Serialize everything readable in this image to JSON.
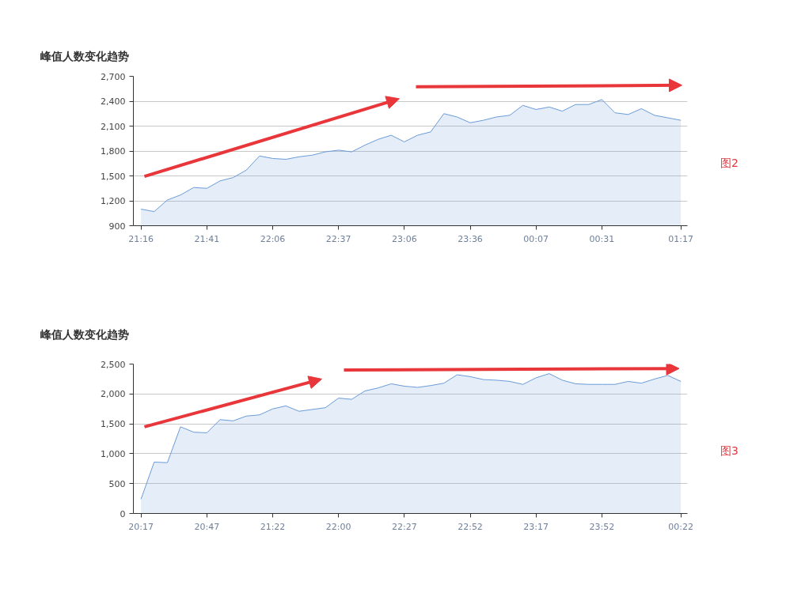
{
  "chart_data": [
    {
      "type": "area",
      "title": "峰值人数变化趋势",
      "categories": [
        "21:16",
        null,
        null,
        null,
        null,
        "21:41",
        null,
        null,
        null,
        null,
        "22:06",
        null,
        null,
        null,
        null,
        "22:37",
        null,
        null,
        null,
        null,
        "23:06",
        null,
        null,
        null,
        null,
        "23:36",
        null,
        null,
        null,
        null,
        "00:07",
        null,
        null,
        null,
        null,
        "00:31",
        null,
        null,
        null,
        null,
        null,
        "01:17"
      ],
      "series": [
        {
          "color": "#6a9bd8",
          "values": [
            1100,
            1070,
            1210,
            1270,
            1360,
            1350,
            1440,
            1480,
            1570,
            1740,
            1710,
            1700,
            1730,
            1750,
            1790,
            1810,
            1790,
            1870,
            1940,
            1990,
            1910,
            1990,
            2030,
            2250,
            2210,
            2140,
            2170,
            2210,
            2230,
            2350,
            2300,
            2330,
            2280,
            2360,
            2360,
            2420,
            2260,
            2240,
            2310,
            2230,
            2200,
            2170
          ]
        }
      ],
      "ylim": [
        900,
        2700
      ],
      "yticks": [
        {
          "value": 900,
          "label": "900"
        },
        {
          "value": 1200,
          "label": "1,200"
        },
        {
          "value": 1500,
          "label": "1,500"
        },
        {
          "value": 1800,
          "label": "1,800"
        },
        {
          "value": 2100,
          "label": "2,100"
        },
        {
          "value": 2400,
          "label": "2,400"
        },
        {
          "value": 2700,
          "label": "2,700"
        }
      ],
      "grid": "y",
      "annotations": [
        "图2"
      ]
    },
    {
      "type": "area",
      "title": "峰值人数变化趋势",
      "categories": [
        "20:17",
        null,
        null,
        null,
        null,
        "20:47",
        null,
        null,
        null,
        null,
        "21:22",
        null,
        null,
        null,
        null,
        "22:00",
        null,
        null,
        null,
        null,
        "22:27",
        null,
        null,
        null,
        null,
        "22:52",
        null,
        null,
        null,
        null,
        "23:17",
        null,
        null,
        null,
        null,
        "23:52",
        null,
        null,
        null,
        null,
        null,
        "00:22"
      ],
      "series": [
        {
          "color": "#6a9bd8",
          "values": [
            240,
            860,
            850,
            1450,
            1360,
            1350,
            1570,
            1550,
            1630,
            1650,
            1750,
            1800,
            1710,
            1740,
            1770,
            1930,
            1910,
            2050,
            2100,
            2170,
            2130,
            2110,
            2140,
            2180,
            2320,
            2290,
            2240,
            2230,
            2210,
            2160,
            2270,
            2340,
            2230,
            2170,
            2160,
            2160,
            2160,
            2210,
            2180,
            2250,
            2310,
            2210
          ]
        }
      ],
      "ylim": [
        0,
        2500
      ],
      "yticks": [
        0,
        500,
        {
          "value": 1000,
          "label": "1,000"
        },
        {
          "value": 1500,
          "label": "1,500"
        },
        {
          "value": 2000,
          "label": "2,000"
        },
        {
          "value": 2500,
          "label": "2,500"
        }
      ],
      "grid": "y",
      "annotations": [
        "图3"
      ]
    }
  ]
}
